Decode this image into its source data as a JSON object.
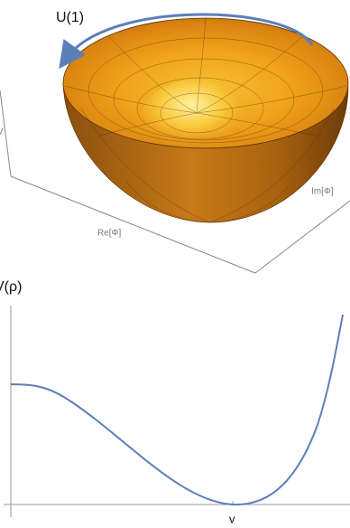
{
  "labels": {
    "symmetry": "U(1)",
    "re_axis": "Re[Φ]",
    "im_axis": "Im[Φ]",
    "v_axis_3d": "V",
    "potential": "V(ρ)",
    "vev": "v"
  }
}
